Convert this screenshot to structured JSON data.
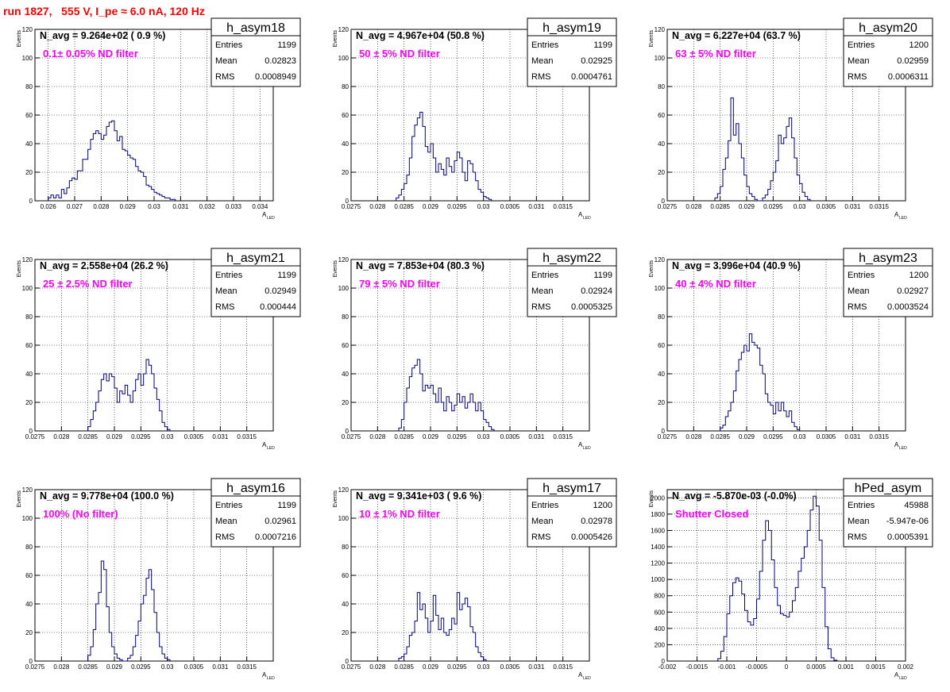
{
  "page_title": "run 1827,   555 V, I_pe ≈ 6.0 nA, 120 Hz",
  "y_axis_label": "Events",
  "x_axis_label": "A",
  "x_axis_label_sub": "LED",
  "stats_labels": {
    "entries": "Entries",
    "mean": "Mean",
    "rms": "RMS"
  },
  "colors": {
    "histogram": "#000080",
    "title_red": "#ff0000",
    "annotation_magenta": "#ff00ff"
  },
  "chart_data": [
    {
      "type": "histogram",
      "name": "h_asym18",
      "navg_text": "N_avg = 9.264e+02 ( 0.9 %)",
      "annotation": "0.1± 0.05% ND filter",
      "entries": "1199",
      "mean": "0.02823",
      "rms": "0.0008949",
      "xlim": [
        0.0255,
        0.0345
      ],
      "ylim": [
        0,
        120
      ],
      "xticks": [
        0.026,
        0.027,
        0.028,
        0.029,
        0.03,
        0.031,
        0.032,
        0.033,
        0.034
      ],
      "xtick_labels": [
        "0.026",
        "0.027",
        "0.028",
        "0.029",
        "0.03",
        "0.031",
        "0.032",
        "0.033",
        "0.034"
      ],
      "yticks": [
        0,
        20,
        40,
        60,
        80,
        100,
        120
      ],
      "ytick_labels": [
        "0",
        "20",
        "40",
        "60",
        "80",
        "100",
        "120"
      ],
      "bin_lo": 0.026,
      "bin_width": 0.0001,
      "counts": [
        2,
        4,
        2,
        4,
        2,
        8,
        5,
        9,
        14,
        16,
        15,
        21,
        21,
        29,
        29,
        36,
        43,
        47,
        49,
        47,
        43,
        46,
        52,
        55,
        56,
        49,
        42,
        45,
        36,
        35,
        32,
        30,
        29,
        24,
        21,
        20,
        17,
        11,
        10,
        8,
        6,
        5,
        4,
        3,
        2,
        2,
        1,
        1
      ]
    },
    {
      "type": "histogram",
      "name": "h_asym19",
      "navg_text": "N_avg = 4.967e+04 (50.8 %)",
      "annotation": "50 ± 5% ND filter",
      "entries": "1199",
      "mean": "0.02925",
      "rms": "0.0004761",
      "xlim": [
        0.0275,
        0.032
      ],
      "ylim": [
        0,
        120
      ],
      "xticks": [
        0.0275,
        0.028,
        0.0285,
        0.029,
        0.0295,
        0.03,
        0.0305,
        0.031,
        0.0315
      ],
      "xtick_labels": [
        "0.0275",
        "0.028",
        "0.0285",
        "0.029",
        "0.0295",
        "0.03",
        "0.0305",
        "0.031",
        "0.0315"
      ],
      "yticks": [
        0,
        20,
        40,
        60,
        80,
        100,
        120
      ],
      "ytick_labels": [
        "0",
        "20",
        "40",
        "60",
        "80",
        "100",
        "120"
      ],
      "bin_lo": 0.02835,
      "bin_width": 5e-05,
      "counts": [
        2,
        4,
        8,
        12,
        18,
        30,
        45,
        53,
        58,
        62,
        52,
        38,
        34,
        40,
        30,
        20,
        26,
        22,
        18,
        30,
        24,
        20,
        28,
        34,
        30,
        20,
        14,
        28,
        26,
        20,
        14,
        8,
        6,
        3,
        2,
        1
      ]
    },
    {
      "type": "histogram",
      "name": "h_asym20",
      "navg_text": "N_avg = 6.227e+04 (63.7 %)",
      "annotation": "63 ± 5% ND filter",
      "entries": "1200",
      "mean": "0.02959",
      "rms": "0.0006311",
      "xlim": [
        0.0275,
        0.032
      ],
      "ylim": [
        0,
        120
      ],
      "xticks": [
        0.0275,
        0.028,
        0.0285,
        0.029,
        0.0295,
        0.03,
        0.0305,
        0.031,
        0.0315
      ],
      "xtick_labels": [
        "0.0275",
        "0.028",
        "0.0285",
        "0.029",
        "0.0295",
        "0.03",
        "0.0305",
        "0.031",
        "0.0315"
      ],
      "yticks": [
        0,
        20,
        40,
        60,
        80,
        100,
        120
      ],
      "ytick_labels": [
        "0",
        "20",
        "40",
        "60",
        "80",
        "100",
        "120"
      ],
      "bin_lo": 0.0284,
      "bin_width": 5e-05,
      "counts": [
        2,
        5,
        10,
        22,
        30,
        42,
        72,
        46,
        54,
        40,
        30,
        18,
        10,
        5,
        3,
        1,
        0,
        0,
        2,
        4,
        8,
        14,
        20,
        28,
        46,
        40,
        44,
        52,
        58,
        44,
        30,
        18,
        12,
        6,
        3,
        1
      ]
    },
    {
      "type": "histogram",
      "name": "h_asym21",
      "navg_text": "N_avg = 2.558e+04 (26.2 %)",
      "annotation": "25 ± 2.5% ND filter",
      "entries": "1199",
      "mean": "0.02949",
      "rms": "0.000444",
      "xlim": [
        0.0275,
        0.032
      ],
      "ylim": [
        0,
        120
      ],
      "xticks": [
        0.0275,
        0.028,
        0.0285,
        0.029,
        0.0295,
        0.03,
        0.0305,
        0.031,
        0.0315
      ],
      "xtick_labels": [
        "0.0275",
        "0.028",
        "0.0285",
        "0.029",
        "0.0295",
        "0.03",
        "0.0305",
        "0.031",
        "0.0315"
      ],
      "yticks": [
        0,
        20,
        40,
        60,
        80,
        100,
        120
      ],
      "ytick_labels": [
        "0",
        "20",
        "40",
        "60",
        "80",
        "100",
        "120"
      ],
      "bin_lo": 0.0285,
      "bin_width": 5e-05,
      "counts": [
        3,
        8,
        14,
        20,
        28,
        36,
        40,
        35,
        40,
        38,
        30,
        20,
        28,
        26,
        32,
        25,
        20,
        28,
        36,
        40,
        32,
        40,
        50,
        46,
        40,
        30,
        22,
        14,
        6,
        3,
        1
      ]
    },
    {
      "type": "histogram",
      "name": "h_asym22",
      "navg_text": "N_avg = 7.853e+04 (80.3 %)",
      "annotation": "79 ± 5% ND filter",
      "entries": "1199",
      "mean": "0.02924",
      "rms": "0.0005325",
      "xlim": [
        0.0275,
        0.032
      ],
      "ylim": [
        0,
        120
      ],
      "xticks": [
        0.0275,
        0.028,
        0.0285,
        0.029,
        0.0295,
        0.03,
        0.0305,
        0.031,
        0.0315
      ],
      "xtick_labels": [
        "0.0275",
        "0.028",
        "0.0285",
        "0.029",
        "0.0295",
        "0.03",
        "0.0305",
        "0.031",
        "0.0315"
      ],
      "yticks": [
        0,
        20,
        40,
        60,
        80,
        100,
        120
      ],
      "ytick_labels": [
        "0",
        "20",
        "40",
        "60",
        "80",
        "100",
        "120"
      ],
      "bin_lo": 0.0284,
      "bin_width": 5e-05,
      "counts": [
        2,
        8,
        20,
        30,
        38,
        44,
        46,
        50,
        40,
        28,
        32,
        30,
        32,
        26,
        20,
        30,
        20,
        14,
        24,
        20,
        14,
        18,
        26,
        20,
        24,
        16,
        20,
        26,
        20,
        14,
        20,
        14,
        8,
        6,
        3,
        1
      ]
    },
    {
      "type": "histogram",
      "name": "h_asym23",
      "navg_text": "N_avg = 3.996e+04 (40.9 %)",
      "annotation": "40 ± 4% ND filter",
      "entries": "1200",
      "mean": "0.02927",
      "rms": "0.0003524",
      "xlim": [
        0.0275,
        0.032
      ],
      "ylim": [
        0,
        120
      ],
      "xticks": [
        0.0275,
        0.028,
        0.0285,
        0.029,
        0.0295,
        0.03,
        0.0305,
        0.031,
        0.0315
      ],
      "xtick_labels": [
        "0.0275",
        "0.028",
        "0.0285",
        "0.029",
        "0.0295",
        "0.03",
        "0.0305",
        "0.031",
        "0.0315"
      ],
      "yticks": [
        0,
        20,
        40,
        60,
        80,
        100,
        120
      ],
      "ytick_labels": [
        "0",
        "20",
        "40",
        "60",
        "80",
        "100",
        "120"
      ],
      "bin_lo": 0.0285,
      "bin_width": 5e-05,
      "counts": [
        2,
        4,
        10,
        14,
        20,
        28,
        42,
        50,
        55,
        60,
        56,
        68,
        62,
        60,
        58,
        46,
        40,
        26,
        20,
        18,
        12,
        20,
        14,
        20,
        14,
        10,
        14,
        6,
        3,
        1
      ]
    },
    {
      "type": "histogram",
      "name": "h_asym16",
      "navg_text": "N_avg = 9.778e+04 (100.0 %)",
      "annotation": "100% (No filter)",
      "entries": "1199",
      "mean": "0.02961",
      "rms": "0.0007216",
      "xlim": [
        0.0275,
        0.032
      ],
      "ylim": [
        0,
        120
      ],
      "xticks": [
        0.0275,
        0.028,
        0.0285,
        0.029,
        0.0295,
        0.03,
        0.0305,
        0.031,
        0.0315
      ],
      "xtick_labels": [
        "0.0275",
        "0.028",
        "0.0285",
        "0.029",
        "0.0295",
        "0.03",
        "0.0305",
        "0.031",
        "0.0315"
      ],
      "yticks": [
        0,
        20,
        40,
        60,
        80,
        100,
        120
      ],
      "ytick_labels": [
        "0",
        "20",
        "40",
        "60",
        "80",
        "100",
        "120"
      ],
      "bin_lo": 0.0285,
      "bin_width": 5e-05,
      "counts": [
        4,
        10,
        22,
        40,
        48,
        70,
        64,
        38,
        20,
        10,
        5,
        2,
        1,
        0,
        0,
        2,
        4,
        10,
        18,
        28,
        40,
        46,
        58,
        64,
        50,
        34,
        20,
        10,
        5,
        2,
        1
      ]
    },
    {
      "type": "histogram",
      "name": "h_asym17",
      "navg_text": "N_avg = 9.341e+03 ( 9.6 %)",
      "annotation": "10 ± 1% ND filter",
      "entries": "1200",
      "mean": "0.02978",
      "rms": "0.0005426",
      "xlim": [
        0.0275,
        0.032
      ],
      "ylim": [
        0,
        120
      ],
      "xticks": [
        0.0275,
        0.028,
        0.0285,
        0.029,
        0.0295,
        0.03,
        0.0305,
        0.031,
        0.0315
      ],
      "xtick_labels": [
        "0.0275",
        "0.028",
        "0.0285",
        "0.029",
        "0.0295",
        "0.03",
        "0.0305",
        "0.031",
        "0.0315"
      ],
      "yticks": [
        0,
        20,
        40,
        60,
        80,
        100,
        120
      ],
      "ytick_labels": [
        "0",
        "20",
        "40",
        "60",
        "80",
        "100",
        "120"
      ],
      "bin_lo": 0.0284,
      "bin_width": 5e-05,
      "counts": [
        2,
        3,
        5,
        10,
        18,
        20,
        28,
        48,
        36,
        40,
        30,
        20,
        28,
        46,
        32,
        22,
        30,
        20,
        18,
        22,
        30,
        26,
        48,
        36,
        40,
        44,
        38,
        24,
        20,
        10,
        6,
        3,
        1
      ]
    },
    {
      "type": "histogram",
      "name": "hPed_asym",
      "navg_text": "N_avg = -5.870e-03 (-0.0%)",
      "annotation": "Shutter Closed",
      "entries": "45988",
      "mean": "-5.947e-06",
      "rms": "0.0005391",
      "xlim": [
        -0.002,
        0.002
      ],
      "ylim": [
        0,
        2100
      ],
      "xticks": [
        -0.002,
        -0.0015,
        -0.001,
        -0.0005,
        0,
        0.0005,
        0.001,
        0.0015,
        0.002
      ],
      "xtick_labels": [
        "-0.002",
        "-0.0015",
        "-0.001",
        "-0.0005",
        "0",
        "0.0005",
        "0.001",
        "0.0015",
        "0.002"
      ],
      "yticks": [
        0,
        200,
        400,
        600,
        800,
        1000,
        1200,
        1400,
        1600,
        1800,
        2000
      ],
      "ytick_labels": [
        "0",
        "200",
        "400",
        "600",
        "800",
        "1000",
        "1200",
        "1400",
        "1600",
        "1800",
        "2000"
      ],
      "bin_lo": -0.00115,
      "bin_width": 5e-05,
      "counts": [
        30,
        120,
        300,
        580,
        800,
        960,
        1020,
        980,
        820,
        620,
        480,
        440,
        520,
        760,
        1100,
        1480,
        1720,
        1600,
        1240,
        900,
        680,
        580,
        560,
        540,
        600,
        740,
        900,
        1100,
        1260,
        1400,
        1600,
        1850,
        2020,
        1900,
        1480,
        900,
        420,
        150,
        40,
        10
      ]
    }
  ]
}
